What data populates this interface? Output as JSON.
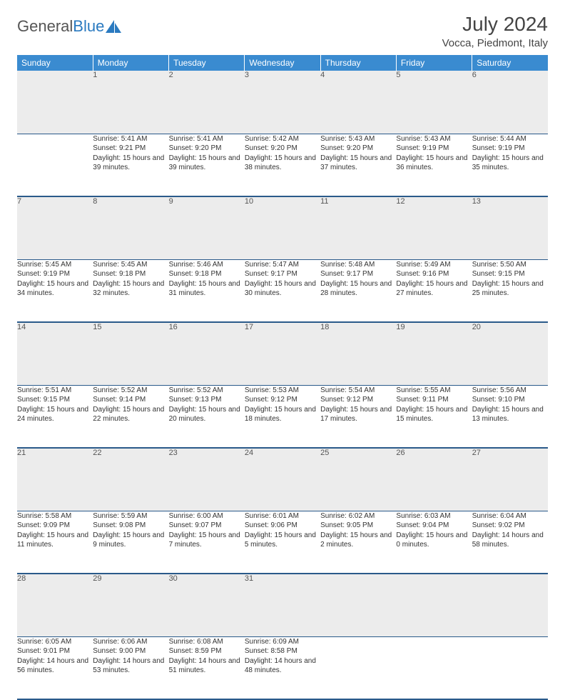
{
  "logo": {
    "text1": "General",
    "text2": "Blue"
  },
  "title": "July 2024",
  "location": "Vocca, Piedmont, Italy",
  "colors": {
    "header_bg": "#3a8bd0",
    "header_text": "#ffffff",
    "daynum_bg": "#ececec",
    "border": "#2a5a8a",
    "logo_blue": "#2a7ac0"
  },
  "weekdays": [
    "Sunday",
    "Monday",
    "Tuesday",
    "Wednesday",
    "Thursday",
    "Friday",
    "Saturday"
  ],
  "weeks": [
    [
      null,
      {
        "n": "1",
        "sr": "Sunrise: 5:41 AM",
        "ss": "Sunset: 9:21 PM",
        "dl": "Daylight: 15 hours and 39 minutes."
      },
      {
        "n": "2",
        "sr": "Sunrise: 5:41 AM",
        "ss": "Sunset: 9:20 PM",
        "dl": "Daylight: 15 hours and 39 minutes."
      },
      {
        "n": "3",
        "sr": "Sunrise: 5:42 AM",
        "ss": "Sunset: 9:20 PM",
        "dl": "Daylight: 15 hours and 38 minutes."
      },
      {
        "n": "4",
        "sr": "Sunrise: 5:43 AM",
        "ss": "Sunset: 9:20 PM",
        "dl": "Daylight: 15 hours and 37 minutes."
      },
      {
        "n": "5",
        "sr": "Sunrise: 5:43 AM",
        "ss": "Sunset: 9:19 PM",
        "dl": "Daylight: 15 hours and 36 minutes."
      },
      {
        "n": "6",
        "sr": "Sunrise: 5:44 AM",
        "ss": "Sunset: 9:19 PM",
        "dl": "Daylight: 15 hours and 35 minutes."
      }
    ],
    [
      {
        "n": "7",
        "sr": "Sunrise: 5:45 AM",
        "ss": "Sunset: 9:19 PM",
        "dl": "Daylight: 15 hours and 34 minutes."
      },
      {
        "n": "8",
        "sr": "Sunrise: 5:45 AM",
        "ss": "Sunset: 9:18 PM",
        "dl": "Daylight: 15 hours and 32 minutes."
      },
      {
        "n": "9",
        "sr": "Sunrise: 5:46 AM",
        "ss": "Sunset: 9:18 PM",
        "dl": "Daylight: 15 hours and 31 minutes."
      },
      {
        "n": "10",
        "sr": "Sunrise: 5:47 AM",
        "ss": "Sunset: 9:17 PM",
        "dl": "Daylight: 15 hours and 30 minutes."
      },
      {
        "n": "11",
        "sr": "Sunrise: 5:48 AM",
        "ss": "Sunset: 9:17 PM",
        "dl": "Daylight: 15 hours and 28 minutes."
      },
      {
        "n": "12",
        "sr": "Sunrise: 5:49 AM",
        "ss": "Sunset: 9:16 PM",
        "dl": "Daylight: 15 hours and 27 minutes."
      },
      {
        "n": "13",
        "sr": "Sunrise: 5:50 AM",
        "ss": "Sunset: 9:15 PM",
        "dl": "Daylight: 15 hours and 25 minutes."
      }
    ],
    [
      {
        "n": "14",
        "sr": "Sunrise: 5:51 AM",
        "ss": "Sunset: 9:15 PM",
        "dl": "Daylight: 15 hours and 24 minutes."
      },
      {
        "n": "15",
        "sr": "Sunrise: 5:52 AM",
        "ss": "Sunset: 9:14 PM",
        "dl": "Daylight: 15 hours and 22 minutes."
      },
      {
        "n": "16",
        "sr": "Sunrise: 5:52 AM",
        "ss": "Sunset: 9:13 PM",
        "dl": "Daylight: 15 hours and 20 minutes."
      },
      {
        "n": "17",
        "sr": "Sunrise: 5:53 AM",
        "ss": "Sunset: 9:12 PM",
        "dl": "Daylight: 15 hours and 18 minutes."
      },
      {
        "n": "18",
        "sr": "Sunrise: 5:54 AM",
        "ss": "Sunset: 9:12 PM",
        "dl": "Daylight: 15 hours and 17 minutes."
      },
      {
        "n": "19",
        "sr": "Sunrise: 5:55 AM",
        "ss": "Sunset: 9:11 PM",
        "dl": "Daylight: 15 hours and 15 minutes."
      },
      {
        "n": "20",
        "sr": "Sunrise: 5:56 AM",
        "ss": "Sunset: 9:10 PM",
        "dl": "Daylight: 15 hours and 13 minutes."
      }
    ],
    [
      {
        "n": "21",
        "sr": "Sunrise: 5:58 AM",
        "ss": "Sunset: 9:09 PM",
        "dl": "Daylight: 15 hours and 11 minutes."
      },
      {
        "n": "22",
        "sr": "Sunrise: 5:59 AM",
        "ss": "Sunset: 9:08 PM",
        "dl": "Daylight: 15 hours and 9 minutes."
      },
      {
        "n": "23",
        "sr": "Sunrise: 6:00 AM",
        "ss": "Sunset: 9:07 PM",
        "dl": "Daylight: 15 hours and 7 minutes."
      },
      {
        "n": "24",
        "sr": "Sunrise: 6:01 AM",
        "ss": "Sunset: 9:06 PM",
        "dl": "Daylight: 15 hours and 5 minutes."
      },
      {
        "n": "25",
        "sr": "Sunrise: 6:02 AM",
        "ss": "Sunset: 9:05 PM",
        "dl": "Daylight: 15 hours and 2 minutes."
      },
      {
        "n": "26",
        "sr": "Sunrise: 6:03 AM",
        "ss": "Sunset: 9:04 PM",
        "dl": "Daylight: 15 hours and 0 minutes."
      },
      {
        "n": "27",
        "sr": "Sunrise: 6:04 AM",
        "ss": "Sunset: 9:02 PM",
        "dl": "Daylight: 14 hours and 58 minutes."
      }
    ],
    [
      {
        "n": "28",
        "sr": "Sunrise: 6:05 AM",
        "ss": "Sunset: 9:01 PM",
        "dl": "Daylight: 14 hours and 56 minutes."
      },
      {
        "n": "29",
        "sr": "Sunrise: 6:06 AM",
        "ss": "Sunset: 9:00 PM",
        "dl": "Daylight: 14 hours and 53 minutes."
      },
      {
        "n": "30",
        "sr": "Sunrise: 6:08 AM",
        "ss": "Sunset: 8:59 PM",
        "dl": "Daylight: 14 hours and 51 minutes."
      },
      {
        "n": "31",
        "sr": "Sunrise: 6:09 AM",
        "ss": "Sunset: 8:58 PM",
        "dl": "Daylight: 14 hours and 48 minutes."
      },
      null,
      null,
      null
    ]
  ]
}
